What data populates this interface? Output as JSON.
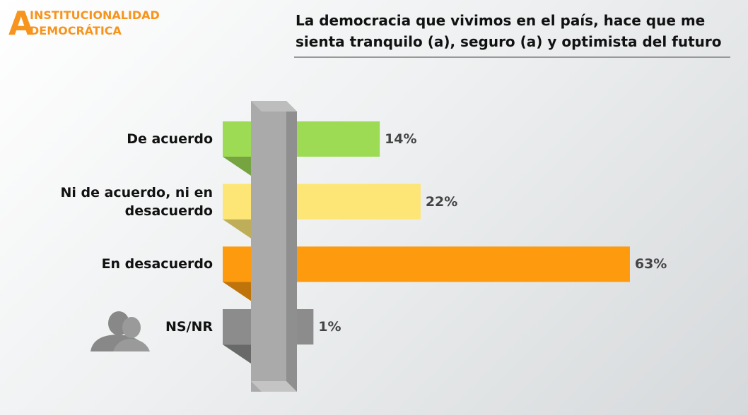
{
  "logo": {
    "letter": "A",
    "line1": "INSTITUCIONALIDAD",
    "line2": "DEMOCRÁTICA"
  },
  "chart_data": {
    "type": "bar",
    "orientation": "horizontal",
    "title": "La democracia que vivimos en el país, hace que me sienta tranquilo (a), seguro (a) y optimista del futuro",
    "categories": [
      "De acuerdo",
      "Ni de acuerdo, ni en desacuerdo",
      "En desacuerdo",
      "NS/NR"
    ],
    "values": [
      14,
      22,
      63,
      1
    ],
    "value_labels": [
      "14%",
      "22%",
      "63%",
      "1%"
    ],
    "colors": [
      "#9ddb55",
      "#fde676",
      "#fe9a0e",
      "#8c8c8c"
    ]
  }
}
